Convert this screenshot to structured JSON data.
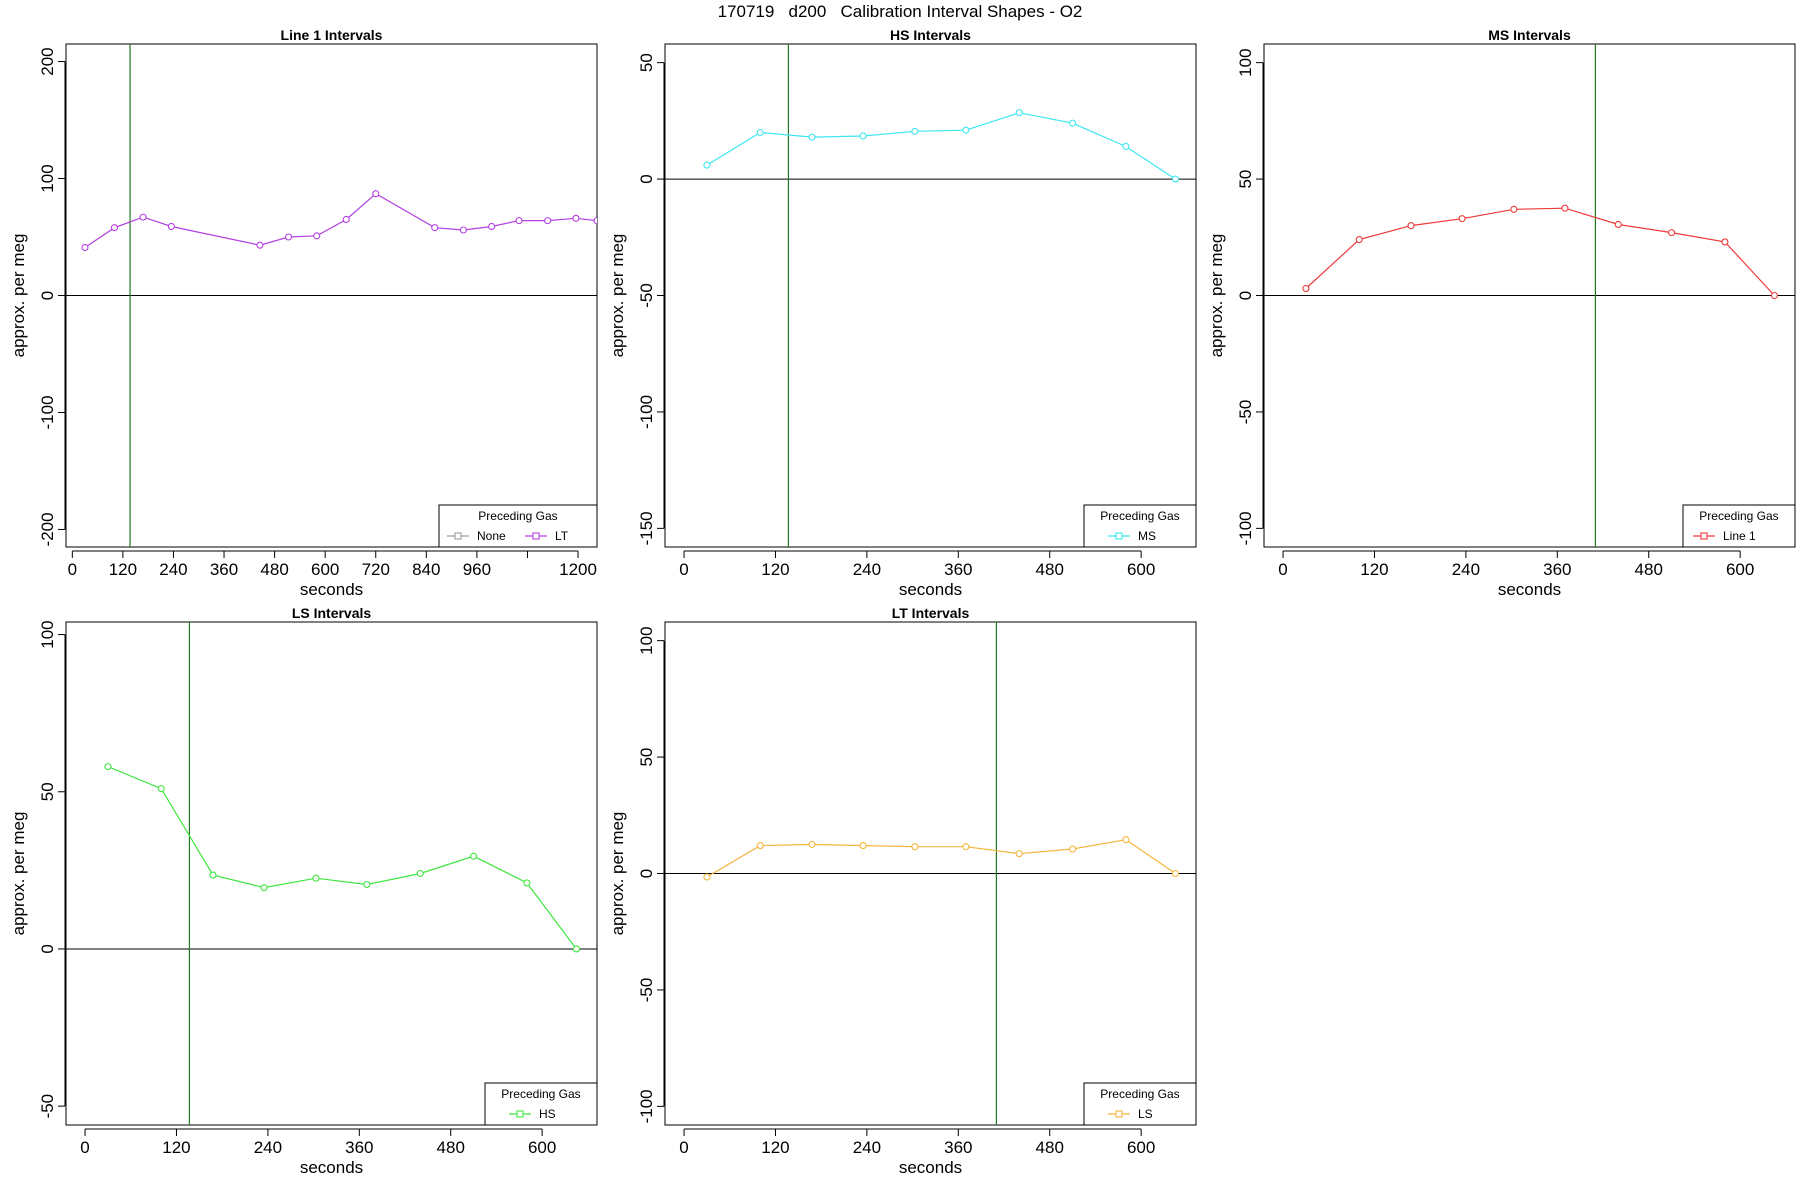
{
  "main_title": "170719   d200   Calibration Interval Shapes - O2",
  "chart_data": [
    {
      "type": "line",
      "title": "Line 1 Intervals",
      "xlabel": "seconds",
      "ylabel": "approx. per meg",
      "xlim": [
        -15,
        1245
      ],
      "ylim": [
        -215,
        215
      ],
      "xticks": [
        0,
        120,
        240,
        360,
        480,
        600,
        720,
        840,
        960,
        1080,
        1200
      ],
      "xtick_labels": [
        "0",
        "120",
        "240",
        "360",
        "480",
        "600",
        "720",
        "840",
        "960",
        "",
        "1200"
      ],
      "yticks": [
        -200,
        -100,
        0,
        100,
        200
      ],
      "vline": 137,
      "legend": {
        "title": "Preceding Gas",
        "position": "bottom-right"
      },
      "series": [
        {
          "name": "None",
          "color": "#9e9e9e",
          "x": [],
          "y": []
        },
        {
          "name": "LT",
          "color": "#b23fe0",
          "x": [
            30,
            100,
            168,
            235,
            445,
            513,
            580,
            650,
            720,
            860,
            928,
            995,
            1060,
            1128,
            1195,
            1245
          ],
          "y": [
            41,
            58,
            67,
            59,
            43,
            50,
            51,
            65,
            87,
            58,
            56,
            59,
            64,
            64,
            66,
            64
          ]
        }
      ]
    },
    {
      "type": "line",
      "title": "HS Intervals",
      "xlabel": "seconds",
      "ylabel": "approx. per meg",
      "xlim": [
        -25,
        672
      ],
      "ylim": [
        -158,
        58
      ],
      "xticks": [
        0,
        120,
        240,
        360,
        480,
        600
      ],
      "xtick_labels": [
        "0",
        "120",
        "240",
        "360",
        "480",
        "600"
      ],
      "yticks": [
        -150,
        -100,
        -50,
        0,
        50
      ],
      "vline": 137,
      "legend": {
        "title": "Preceding Gas",
        "position": "bottom-right"
      },
      "series": [
        {
          "name": "MS",
          "color": "#3ee6f0",
          "x": [
            30,
            100,
            168,
            235,
            303,
            370,
            440,
            510,
            580,
            645
          ],
          "y": [
            6,
            20,
            18,
            18.5,
            20.5,
            21,
            28.5,
            24,
            14,
            0
          ]
        }
      ]
    },
    {
      "type": "line",
      "title": "MS Intervals",
      "xlabel": "seconds",
      "ylabel": "approx. per meg",
      "xlim": [
        -25,
        672
      ],
      "ylim": [
        -108,
        108
      ],
      "xticks": [
        0,
        120,
        240,
        360,
        480,
        600
      ],
      "xtick_labels": [
        "0",
        "120",
        "240",
        "360",
        "480",
        "600"
      ],
      "yticks": [
        -100,
        -50,
        0,
        50,
        100
      ],
      "vline": 410,
      "legend": {
        "title": "Preceding Gas",
        "position": "bottom-right"
      },
      "series": [
        {
          "name": "Line 1",
          "color": "#ee3a3a",
          "x": [
            30,
            100,
            168,
            235,
            303,
            370,
            440,
            510,
            580,
            645
          ],
          "y": [
            3,
            24,
            30,
            33,
            37,
            37.5,
            30.5,
            27,
            23,
            0
          ]
        }
      ]
    },
    {
      "type": "line",
      "title": "LS Intervals",
      "xlabel": "seconds",
      "ylabel": "approx. per meg",
      "xlim": [
        -25,
        672
      ],
      "ylim": [
        -56,
        104
      ],
      "xticks": [
        0,
        120,
        240,
        360,
        480,
        600
      ],
      "xtick_labels": [
        "0",
        "120",
        "240",
        "360",
        "480",
        "600"
      ],
      "yticks": [
        -50,
        0,
        50,
        100
      ],
      "vline": 137,
      "legend": {
        "title": "Preceding Gas",
        "position": "bottom-right"
      },
      "series": [
        {
          "name": "HS",
          "color": "#3ee63e",
          "x": [
            30,
            100,
            168,
            235,
            303,
            370,
            440,
            510,
            580,
            645
          ],
          "y": [
            58,
            51,
            23.5,
            19.5,
            22.5,
            20.5,
            24,
            29.5,
            21,
            0
          ]
        }
      ]
    },
    {
      "type": "line",
      "title": "LT Intervals",
      "xlabel": "seconds",
      "ylabel": "approx. per meg",
      "xlim": [
        -25,
        672
      ],
      "ylim": [
        -108,
        108
      ],
      "xticks": [
        0,
        120,
        240,
        360,
        480,
        600
      ],
      "xtick_labels": [
        "0",
        "120",
        "240",
        "360",
        "480",
        "600"
      ],
      "yticks": [
        -100,
        -50,
        0,
        50,
        100
      ],
      "vline": 410,
      "legend": {
        "title": "Preceding Gas",
        "position": "bottom-right"
      },
      "series": [
        {
          "name": "LS",
          "color": "#f5b53c",
          "x": [
            30,
            100,
            168,
            235,
            303,
            370,
            440,
            510,
            580,
            645
          ],
          "y": [
            -1.5,
            12,
            12.5,
            12,
            11.5,
            11.5,
            8.5,
            10.5,
            14.5,
            0
          ]
        }
      ]
    }
  ]
}
